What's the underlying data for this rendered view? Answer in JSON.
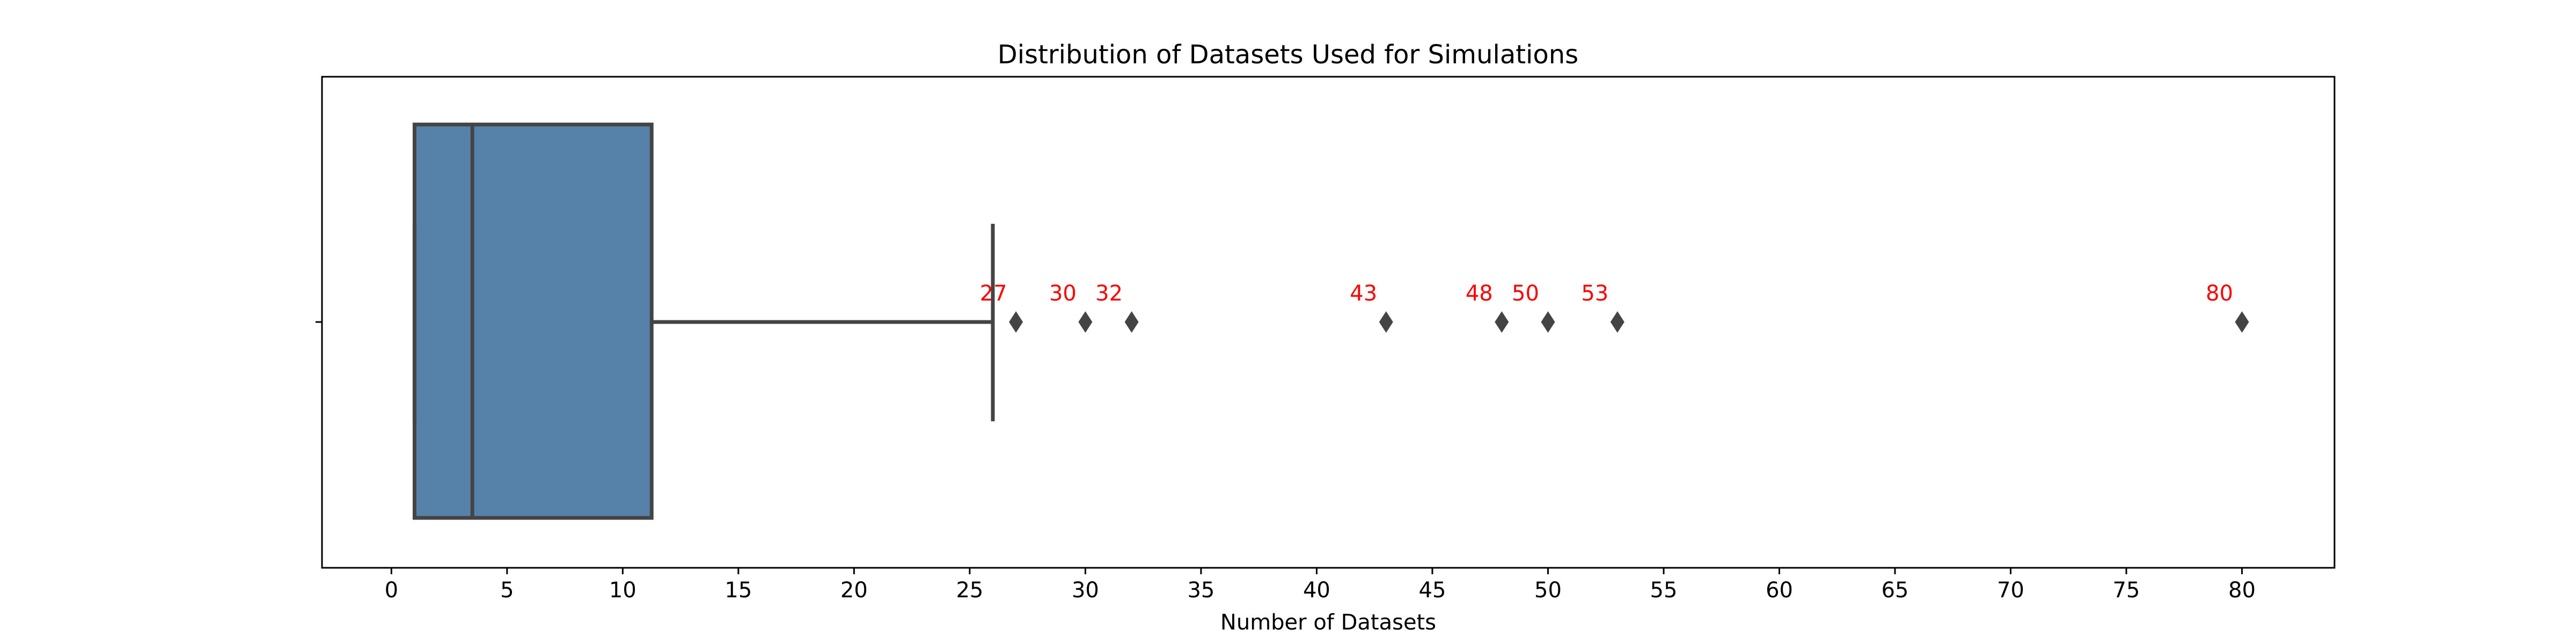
{
  "chart_data": {
    "type": "box",
    "orientation": "horizontal",
    "title": "Distribution of Datasets Used for Simulations",
    "xlabel": "Number of Datasets",
    "ylabel": "",
    "xlim": [
      -3,
      84
    ],
    "xticks": [
      0,
      5,
      10,
      15,
      20,
      25,
      30,
      35,
      40,
      45,
      50,
      55,
      60,
      65,
      70,
      75,
      80
    ],
    "grid": false,
    "box": {
      "whisker_low": 1,
      "q1": 1,
      "median": 3.5,
      "q3": 11.25,
      "whisker_high": 26
    },
    "outliers": [
      27,
      30,
      32,
      43,
      48,
      50,
      53,
      80
    ],
    "outlier_labels": [
      "27",
      "30",
      "32",
      "43",
      "48",
      "50",
      "53",
      "80"
    ],
    "colors": {
      "box_fill": "#5682aa",
      "line": "#444444",
      "outlier_label": "#ff0000"
    }
  }
}
